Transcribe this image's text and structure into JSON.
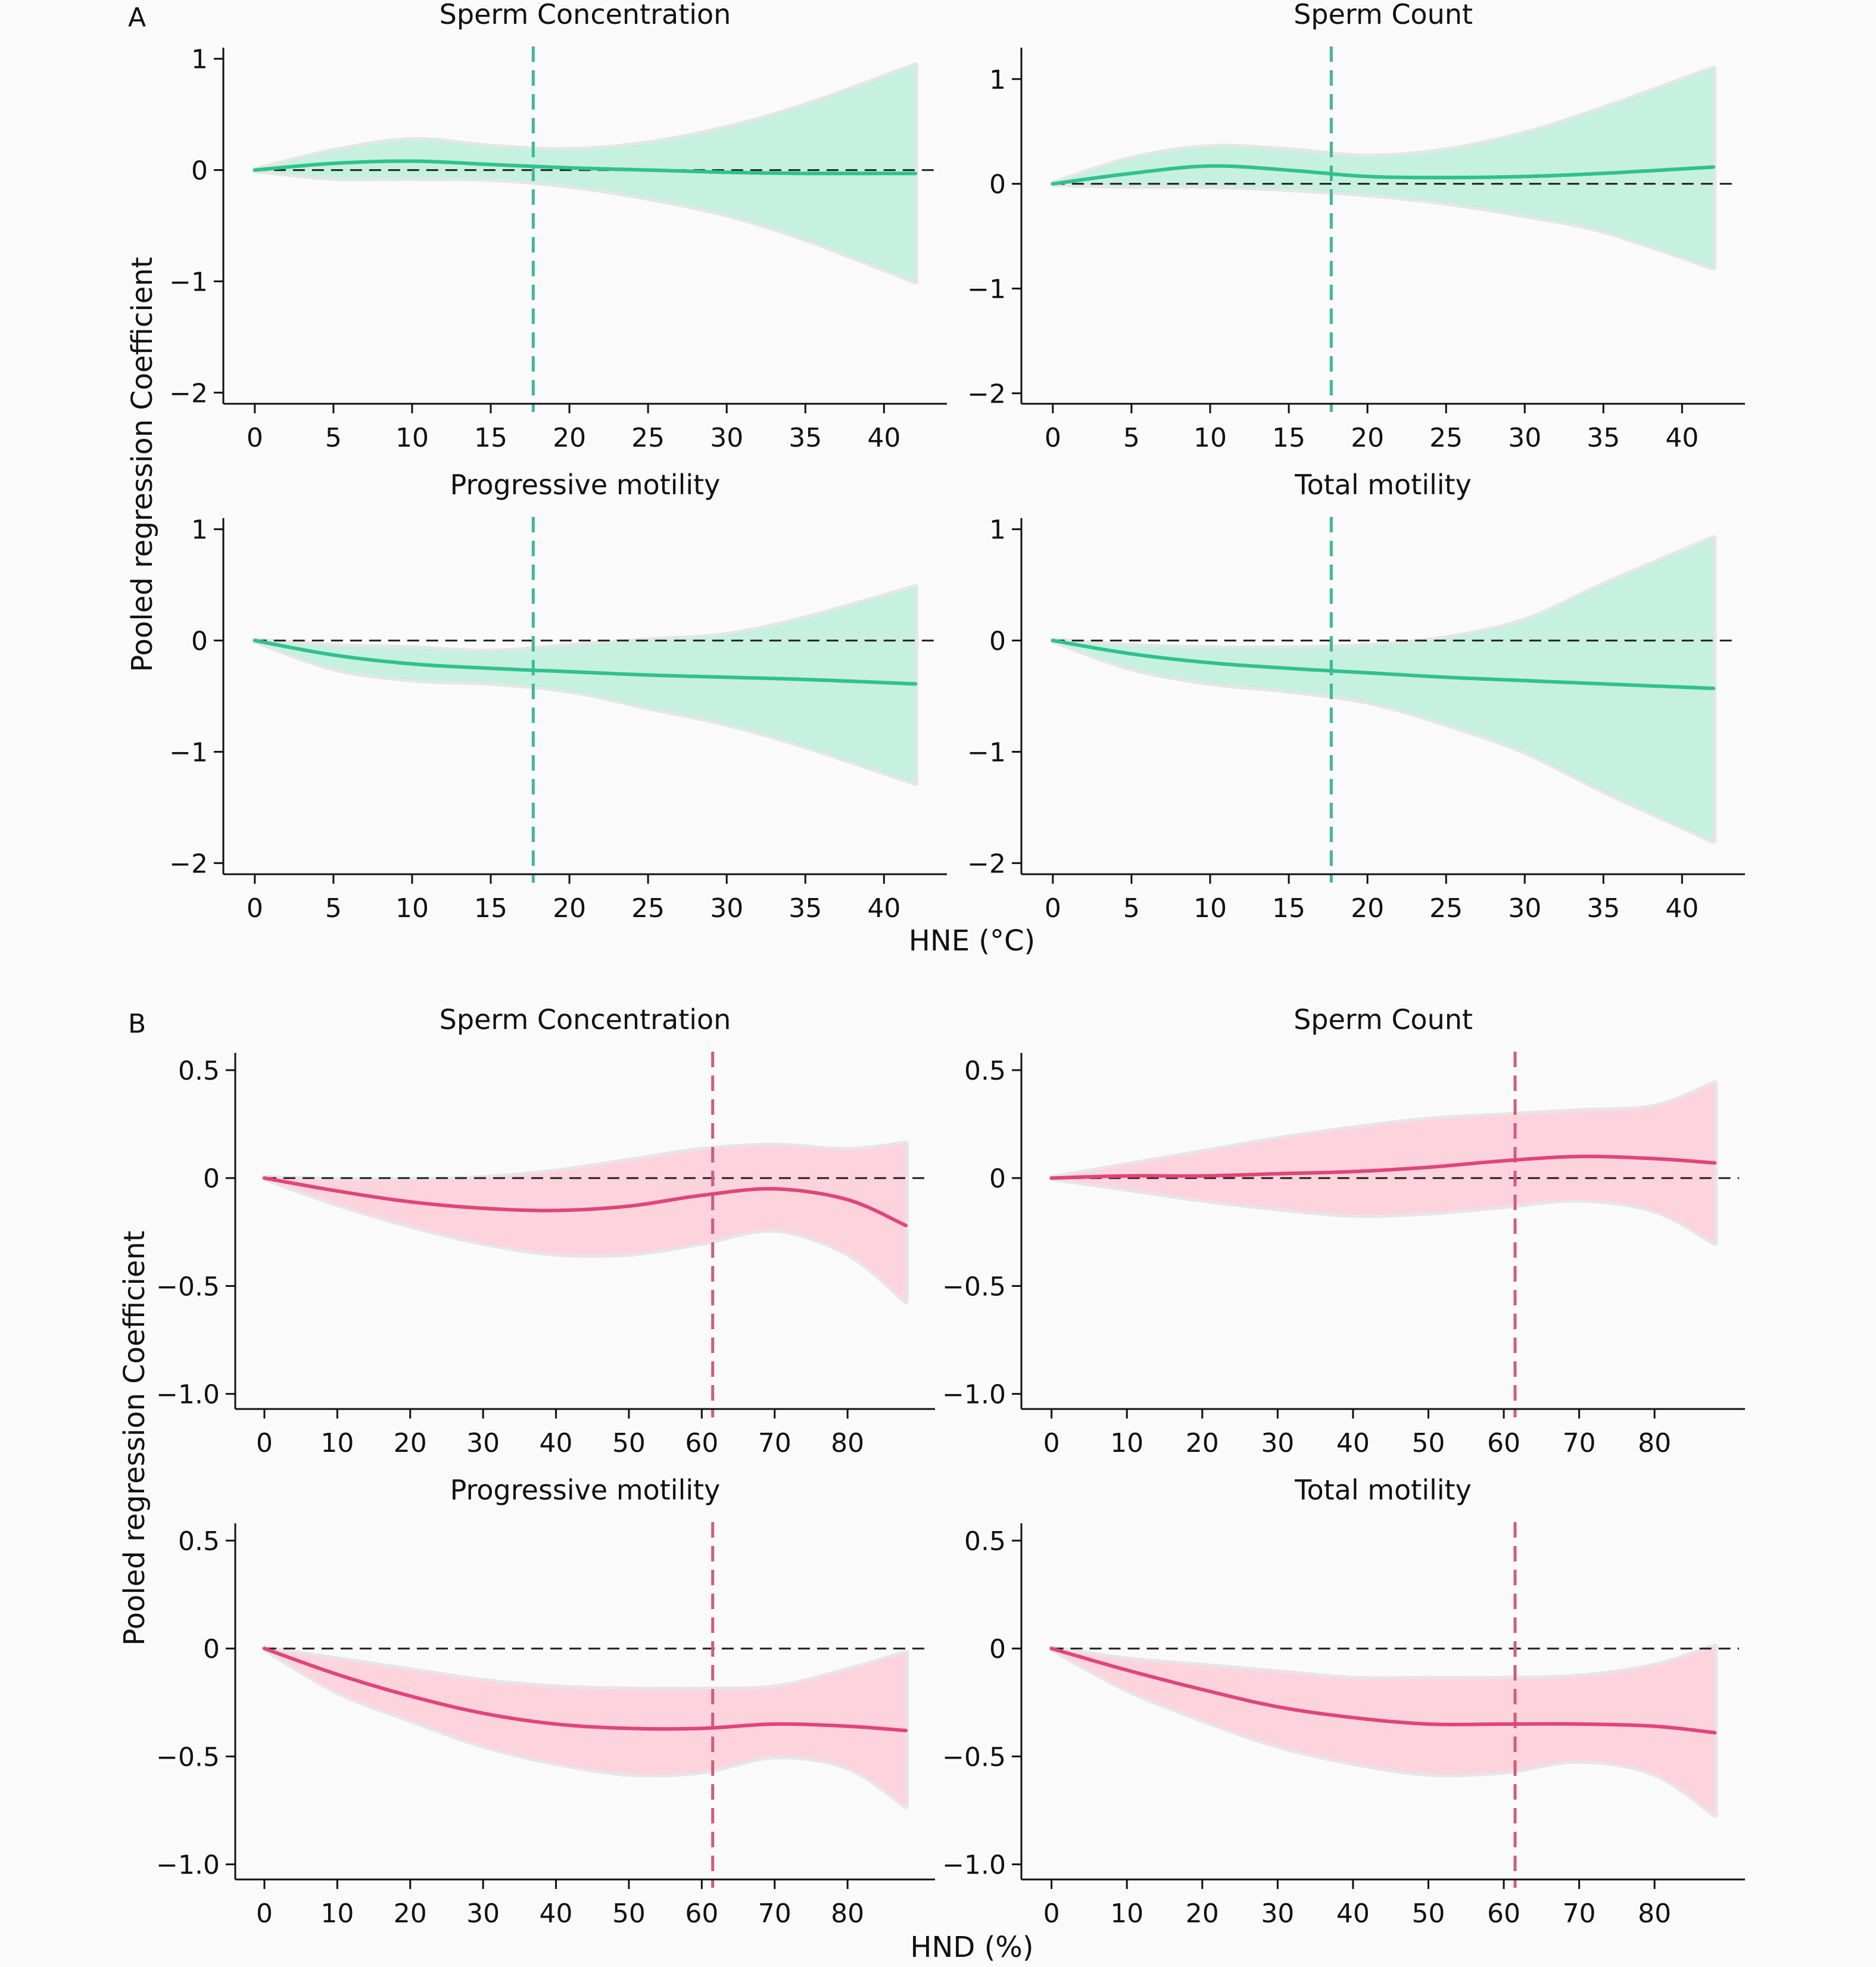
{
  "figure": {
    "section_a_label": "A",
    "section_b_label": "B",
    "ylabel": "Pooled regression Coefficient",
    "xlabel_a": "HNE (°C)",
    "xlabel_b": "HND (%)"
  },
  "colors": {
    "hne_line": "#2ec28e",
    "hne_band": "#c6f0e0",
    "hne_ref": "#3fb89a",
    "hnd_line": "#e0457a",
    "hnd_band": "#fdd3de",
    "hnd_ref": "#d05c7e",
    "band_grey": "#e6e6e6",
    "zero_line": "#222222"
  },
  "chart_data": [
    {
      "type": "area",
      "section": "A",
      "title": "Sperm Concentration",
      "x": [
        0,
        5,
        10,
        15,
        20,
        25,
        30,
        35,
        42
      ],
      "y": [
        0,
        0.06,
        0.08,
        0.05,
        0.02,
        0.0,
        -0.02,
        -0.03,
        -0.03
      ],
      "lower": [
        0,
        -0.07,
        -0.07,
        -0.08,
        -0.14,
        -0.25,
        -0.4,
        -0.62,
        -1.0
      ],
      "upper": [
        0,
        0.17,
        0.27,
        0.21,
        0.18,
        0.24,
        0.38,
        0.58,
        0.94
      ],
      "ref_x": 17.7,
      "xlim": [
        -2,
        44
      ],
      "ylim": [
        -2.1,
        1.1
      ],
      "xticks": [
        0,
        5,
        10,
        15,
        20,
        25,
        30,
        35,
        40
      ],
      "yticks": [
        1,
        0,
        -1,
        -2
      ],
      "ytick_labels": [
        "1",
        "0",
        "−1",
        "−2"
      ]
    },
    {
      "type": "area",
      "section": "A",
      "title": "Sperm Count",
      "x": [
        0,
        5,
        10,
        15,
        20,
        25,
        30,
        35,
        42
      ],
      "y": [
        0,
        0.1,
        0.17,
        0.13,
        0.07,
        0.06,
        0.07,
        0.1,
        0.16
      ],
      "lower": [
        0,
        -0.02,
        -0.02,
        -0.05,
        -0.1,
        -0.18,
        -0.3,
        -0.45,
        -0.8
      ],
      "upper": [
        0,
        0.24,
        0.35,
        0.32,
        0.26,
        0.32,
        0.48,
        0.72,
        1.1
      ],
      "ref_x": 17.7,
      "xlim": [
        -2,
        44
      ],
      "ylim": [
        -2.1,
        1.3
      ],
      "xticks": [
        0,
        5,
        10,
        15,
        20,
        25,
        30,
        35,
        40
      ],
      "yticks": [
        1,
        0,
        -1,
        -2
      ],
      "ytick_labels": [
        "1",
        "0",
        "−1",
        "−2"
      ]
    },
    {
      "type": "area",
      "section": "A",
      "title": "Progressive motility",
      "x": [
        0,
        5,
        10,
        15,
        20,
        25,
        30,
        35,
        42
      ],
      "y": [
        0,
        -0.13,
        -0.21,
        -0.25,
        -0.28,
        -0.31,
        -0.33,
        -0.35,
        -0.39
      ],
      "lower": [
        0,
        -0.25,
        -0.35,
        -0.38,
        -0.45,
        -0.6,
        -0.75,
        -0.95,
        -1.28
      ],
      "upper": [
        0,
        -0.05,
        -0.07,
        -0.1,
        -0.05,
        0.0,
        0.05,
        0.2,
        0.48
      ],
      "ref_x": 17.7,
      "xlim": [
        -2,
        44
      ],
      "ylim": [
        -2.1,
        1.1
      ],
      "xticks": [
        0,
        5,
        10,
        15,
        20,
        25,
        30,
        35,
        40
      ],
      "yticks": [
        1,
        0,
        -1,
        -2
      ],
      "ytick_labels": [
        "1",
        "0",
        "−1",
        "−2"
      ]
    },
    {
      "type": "area",
      "section": "A",
      "title": "Total motility",
      "x": [
        0,
        5,
        10,
        15,
        20,
        25,
        30,
        35,
        42
      ],
      "y": [
        0,
        -0.12,
        -0.2,
        -0.25,
        -0.29,
        -0.33,
        -0.36,
        -0.39,
        -0.43
      ],
      "lower": [
        0,
        -0.25,
        -0.38,
        -0.45,
        -0.55,
        -0.75,
        -1.0,
        -1.35,
        -1.8
      ],
      "upper": [
        0,
        -0.05,
        -0.07,
        -0.07,
        -0.05,
        0.02,
        0.18,
        0.5,
        0.92
      ],
      "ref_x": 17.7,
      "xlim": [
        -2,
        44
      ],
      "ylim": [
        -2.1,
        1.1
      ],
      "xticks": [
        0,
        5,
        10,
        15,
        20,
        25,
        30,
        35,
        40
      ],
      "yticks": [
        1,
        0,
        -1,
        -2
      ],
      "ytick_labels": [
        "1",
        "0",
        "−1",
        "−2"
      ]
    },
    {
      "type": "area",
      "section": "B",
      "title": "Sperm Concentration",
      "x": [
        0,
        10,
        20,
        30,
        40,
        50,
        60,
        70,
        80,
        88
      ],
      "y": [
        0,
        -0.06,
        -0.11,
        -0.14,
        -0.15,
        -0.13,
        -0.08,
        -0.05,
        -0.1,
        -0.22
      ],
      "lower": [
        0,
        -0.12,
        -0.22,
        -0.3,
        -0.35,
        -0.35,
        -0.3,
        -0.24,
        -0.35,
        -0.57
      ],
      "upper": [
        0,
        -0.01,
        -0.01,
        0.0,
        0.03,
        0.08,
        0.13,
        0.15,
        0.13,
        0.16
      ],
      "ref_x": 61.5,
      "xlim": [
        -4,
        92
      ],
      "ylim": [
        -1.07,
        0.58
      ],
      "xticks": [
        0,
        10,
        20,
        30,
        40,
        50,
        60,
        70,
        80
      ],
      "yticks": [
        0.5,
        0,
        -0.5,
        -1.0
      ],
      "ytick_labels": [
        "0.5",
        "0",
        "−0.5",
        "−1.0"
      ]
    },
    {
      "type": "area",
      "section": "B",
      "title": "Sperm Count",
      "x": [
        0,
        10,
        20,
        30,
        40,
        50,
        60,
        70,
        80,
        88
      ],
      "y": [
        0,
        0.01,
        0.01,
        0.02,
        0.03,
        0.05,
        0.08,
        0.1,
        0.09,
        0.07
      ],
      "lower": [
        0,
        -0.05,
        -0.1,
        -0.14,
        -0.17,
        -0.16,
        -0.13,
        -0.1,
        -0.15,
        -0.3
      ],
      "upper": [
        0,
        0.06,
        0.12,
        0.18,
        0.23,
        0.27,
        0.29,
        0.31,
        0.33,
        0.44
      ],
      "ref_x": 61.5,
      "xlim": [
        -4,
        92
      ],
      "ylim": [
        -1.07,
        0.58
      ],
      "xticks": [
        0,
        10,
        20,
        30,
        40,
        50,
        60,
        70,
        80
      ],
      "yticks": [
        0.5,
        0,
        -0.5,
        -1.0
      ],
      "ytick_labels": [
        "0.5",
        "0",
        "−0.5",
        "−1.0"
      ]
    },
    {
      "type": "area",
      "section": "B",
      "title": "Progressive motility",
      "x": [
        0,
        10,
        20,
        30,
        40,
        50,
        60,
        70,
        80,
        88
      ],
      "y": [
        0,
        -0.12,
        -0.22,
        -0.3,
        -0.35,
        -0.37,
        -0.37,
        -0.35,
        -0.36,
        -0.38
      ],
      "lower": [
        0,
        -0.2,
        -0.33,
        -0.45,
        -0.53,
        -0.58,
        -0.57,
        -0.5,
        -0.55,
        -0.73
      ],
      "upper": [
        0,
        -0.05,
        -0.1,
        -0.15,
        -0.18,
        -0.19,
        -0.19,
        -0.18,
        -0.1,
        -0.02
      ],
      "ref_x": 61.5,
      "xlim": [
        -4,
        92
      ],
      "ylim": [
        -1.07,
        0.58
      ],
      "xticks": [
        0,
        10,
        20,
        30,
        40,
        50,
        60,
        70,
        80
      ],
      "yticks": [
        0.5,
        0,
        -0.5,
        -1.0
      ],
      "ytick_labels": [
        "0.5",
        "0",
        "−0.5",
        "−1.0"
      ]
    },
    {
      "type": "area",
      "section": "B",
      "title": "Total motility",
      "x": [
        0,
        10,
        20,
        30,
        40,
        50,
        60,
        70,
        80,
        88
      ],
      "y": [
        0,
        -0.1,
        -0.19,
        -0.27,
        -0.32,
        -0.35,
        -0.35,
        -0.35,
        -0.36,
        -0.39
      ],
      "lower": [
        0,
        -0.19,
        -0.33,
        -0.45,
        -0.53,
        -0.58,
        -0.57,
        -0.52,
        -0.58,
        -0.77
      ],
      "upper": [
        0,
        -0.05,
        -0.08,
        -0.11,
        -0.14,
        -0.14,
        -0.14,
        -0.13,
        -0.08,
        0.01
      ],
      "ref_x": 61.5,
      "xlim": [
        -4,
        92
      ],
      "ylim": [
        -1.07,
        0.58
      ],
      "xticks": [
        0,
        10,
        20,
        30,
        40,
        50,
        60,
        70,
        80
      ],
      "yticks": [
        0.5,
        0,
        -0.5,
        -1.0
      ],
      "ytick_labels": [
        "0.5",
        "0",
        "−0.5",
        "−1.0"
      ]
    }
  ]
}
